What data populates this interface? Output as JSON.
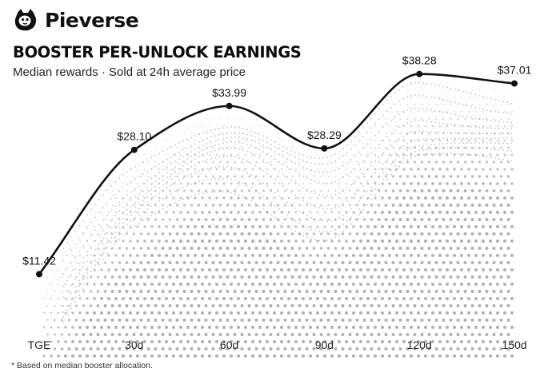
{
  "brand": {
    "name": "Pieverse"
  },
  "chart_data": {
    "type": "area",
    "title": "BOOSTER PER-UNLOCK EARNINGS",
    "subtitle": "Median rewards · Sold at 24h average price",
    "categories": [
      "TGE",
      "30d",
      "60d",
      "90d",
      "120d",
      "150d"
    ],
    "x_days": [
      0,
      30,
      60,
      90,
      120,
      150
    ],
    "values": [
      11.42,
      28.1,
      33.99,
      28.29,
      38.28,
      37.01
    ],
    "data_labels": [
      "$11.42",
      "$28.10",
      "$33.99",
      "$28.29",
      "$38.28",
      "$37.01"
    ],
    "value_unit": "USD",
    "grid": false,
    "legend": "none",
    "line_color": "#111111",
    "fill_style": "grey dot halftone"
  },
  "footnote": "* Based on median booster allocation."
}
